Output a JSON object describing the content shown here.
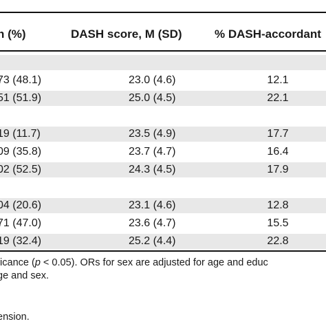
{
  "table": {
    "headers": [
      "n (%)",
      "DASH score, M (SD)",
      "% DASH-accordant"
    ],
    "rows": [
      {
        "n": "",
        "score": "",
        "pct": "",
        "shaded": true
      },
      {
        "n": "73 (48.1)",
        "score": "23.0 (4.6)",
        "pct": "12.1",
        "shaded": false
      },
      {
        "n": "51 (51.9)",
        "score": "25.0 (4.5)",
        "pct": "22.1",
        "shaded": true
      },
      {
        "n": "",
        "score": "",
        "pct": "",
        "shaded": false
      },
      {
        "n": "19 (11.7)",
        "score": "23.5 (4.9)",
        "pct": "17.7",
        "shaded": true
      },
      {
        "n": "09 (35.8)",
        "score": "23.7 (4.7)",
        "pct": "16.4",
        "shaded": false
      },
      {
        "n": "02 (52.5)",
        "score": "24.3 (4.5)",
        "pct": "17.9",
        "shaded": true
      },
      {
        "n": "",
        "score": "",
        "pct": "",
        "shaded": false
      },
      {
        "n": "04 (20.6)",
        "score": "23.1 (4.6)",
        "pct": "12.8",
        "shaded": true
      },
      {
        "n": "71 (47.0)",
        "score": "23.6 (4.7)",
        "pct": "15.5",
        "shaded": false
      },
      {
        "n": "19 (32.4)",
        "score": "25.2 (4.4)",
        "pct": "22.8",
        "shaded": true
      }
    ]
  },
  "footnotes": {
    "line1_pre": "ficance (",
    "line1_p": "p",
    "line1_post": " < 0.05). ORs for sex are adjusted for age and educ",
    "line2": "ge and sex.",
    "line3": "ension."
  }
}
